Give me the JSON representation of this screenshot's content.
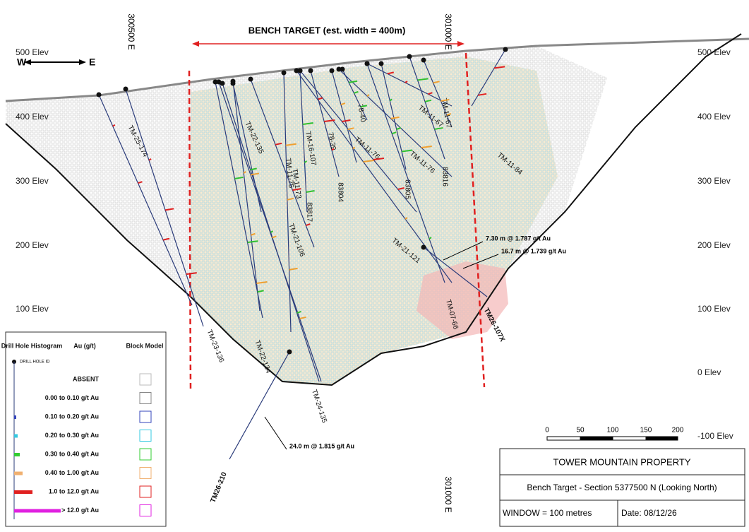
{
  "header": {
    "title": "BENCH TARGET (est. width = 400m)"
  },
  "compass": {
    "west": "W",
    "east": "E"
  },
  "eastings": [
    "300500 E",
    "301000 E",
    "301000 E"
  ],
  "elev_left": [
    "500 Elev",
    "400 Elev",
    "300 Elev",
    "200 Elev",
    "100 Elev"
  ],
  "elev_right": [
    "500 Elev",
    "400 Elev",
    "300 Elev",
    "200 Elev",
    "100 Elev",
    "0 Elev",
    "-100 Elev"
  ],
  "holes": [
    "TM-25-174",
    "TM-22-135",
    "TM-22-134",
    "TM-23-136",
    "TM-21-106",
    "TM-24-135",
    "TM-11-73",
    "TM-11-75",
    "83817",
    "83804",
    "78-39",
    "78-40",
    "TM-11-76",
    "TM-11-76",
    "83805",
    "TM-11-67",
    "TM-11-67",
    "83816",
    "TM-11-84",
    "TM-21-121",
    "TM-07-66",
    "TM26-107X",
    "TM26-210",
    "TM-16-107"
  ],
  "annotations": [
    "7.30 m @ 1.787 g/t Au",
    "16.7 m @ 1.739 g/t Au",
    "24.0 m @ 1.815 g/t Au"
  ],
  "legend": {
    "headers": [
      "Drill Hole Histogram",
      "Au (g/t)",
      "Block Model"
    ],
    "hole_id": "DRILL HOLE ID",
    "rows": [
      "ABSENT",
      "0.00 to 0.10 g/t Au",
      "0.10 to 0.20 g/t Au",
      "0.20 to 0.30 g/t Au",
      "0.30 to 0.40 g/t Au",
      "0.40 to 1.00 g/t Au",
      "1.0 to 12.0 g/t Au",
      "> 12.0 g/t Au"
    ]
  },
  "scale": [
    "0",
    "50",
    "100",
    "150",
    "200"
  ],
  "title_block": {
    "property": "TOWER MOUNTAIN PROPERTY",
    "section": "Bench Target - Section 5377500 N (Looking North)",
    "window": "WINDOW = 100 metres",
    "date": "Date: 08/12/26"
  }
}
